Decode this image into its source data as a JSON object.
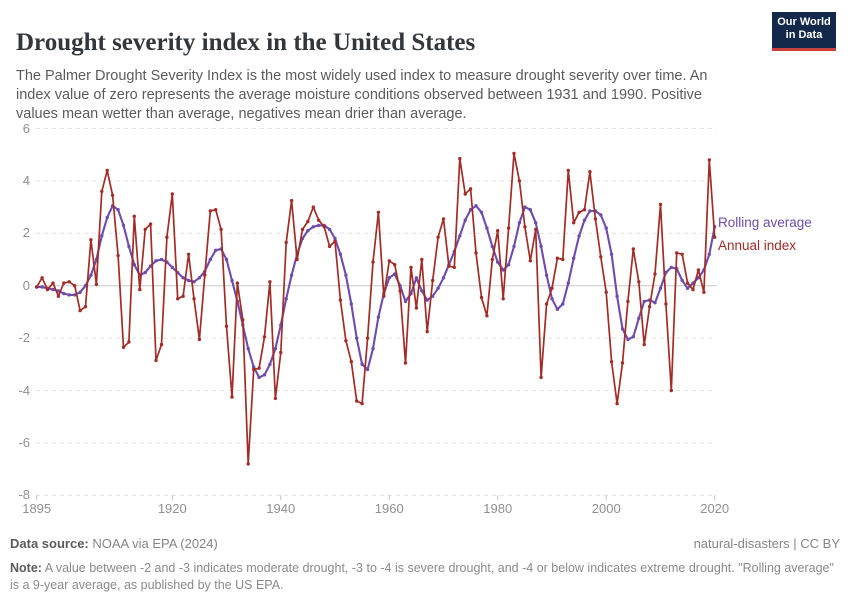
{
  "header": {
    "title": "Drought severity index in the United States",
    "subtitle": "The Palmer Drought Severity Index is the most widely used index to measure drought severity over time. An index value of zero represents the average moisture conditions observed between 1931 and 1990. Positive values mean wetter than average, negatives mean drier than average.",
    "logo": {
      "line1": "Our World",
      "line2": "in Data"
    }
  },
  "legend": {
    "rolling_label": "Rolling average",
    "annual_label": "Annual index"
  },
  "footer": {
    "source_label": "Data source:",
    "source_text": " NOAA via EPA (2024)",
    "attribution": "natural-disasters | CC BY",
    "note_label": "Note:",
    "note_text": " A value between -2 and -3 indicates moderate drought, -3 to -4 is severe drought, and -4 or below indicates extreme drought. \"Rolling average\" is a 9-year average, as published by the US EPA."
  },
  "colors": {
    "annual": "#A22C26",
    "rolling": "#6D4CAD",
    "grid": "#e0e0e0",
    "zero_line": "#c8c8c8",
    "tick_text": "#909090",
    "logo_navy": "#12294B",
    "logo_red": "#C7403C"
  },
  "chart_data": {
    "type": "line",
    "title": "Drought severity index in the United States",
    "xlabel": "",
    "ylabel": "",
    "xlim": [
      1895,
      2020
    ],
    "ylim": [
      -8,
      6
    ],
    "x_ticks": [
      1895,
      1920,
      1940,
      1960,
      1980,
      2000,
      2020
    ],
    "y_ticks": [
      6,
      4,
      2,
      0,
      -2,
      -4,
      -6,
      -8
    ],
    "grid": "horizontal dashed, solid line at zero",
    "legend_position": "right of line ends",
    "years": [
      1895,
      1896,
      1897,
      1898,
      1899,
      1900,
      1901,
      1902,
      1903,
      1904,
      1905,
      1906,
      1907,
      1908,
      1909,
      1910,
      1911,
      1912,
      1913,
      1914,
      1915,
      1916,
      1917,
      1918,
      1919,
      1920,
      1921,
      1922,
      1923,
      1924,
      1925,
      1926,
      1927,
      1928,
      1929,
      1930,
      1931,
      1932,
      1933,
      1934,
      1935,
      1936,
      1937,
      1938,
      1939,
      1940,
      1941,
      1942,
      1943,
      1944,
      1945,
      1946,
      1947,
      1948,
      1949,
      1950,
      1951,
      1952,
      1953,
      1954,
      1955,
      1956,
      1957,
      1958,
      1959,
      1960,
      1961,
      1962,
      1963,
      1964,
      1965,
      1966,
      1967,
      1968,
      1969,
      1970,
      1971,
      1972,
      1973,
      1974,
      1975,
      1976,
      1977,
      1978,
      1979,
      1980,
      1981,
      1982,
      1983,
      1984,
      1985,
      1986,
      1987,
      1988,
      1989,
      1990,
      1991,
      1992,
      1993,
      1994,
      1995,
      1996,
      1997,
      1998,
      1999,
      2000,
      2001,
      2002,
      2003,
      2004,
      2005,
      2006,
      2007,
      2008,
      2009,
      2010,
      2011,
      2012,
      2013,
      2014,
      2015,
      2016,
      2017,
      2018,
      2019,
      2020
    ],
    "series": [
      {
        "name": "Rolling average",
        "color": "#6D4CAD",
        "values": [
          -0.05,
          -0.05,
          -0.1,
          -0.15,
          -0.2,
          -0.3,
          -0.35,
          -0.35,
          -0.25,
          0,
          0.4,
          1,
          1.9,
          2.6,
          3.05,
          2.9,
          2.3,
          1.5,
          0.8,
          0.4,
          0.5,
          0.75,
          0.95,
          1,
          0.9,
          0.7,
          0.5,
          0.3,
          0.2,
          0.15,
          0.3,
          0.55,
          1,
          1.35,
          1.4,
          1,
          0.2,
          -0.6,
          -1.5,
          -2.4,
          -3.1,
          -3.5,
          -3.4,
          -3,
          -2.4,
          -1.5,
          -0.5,
          0.4,
          1.2,
          1.8,
          2.1,
          2.25,
          2.3,
          2.3,
          2.15,
          1.8,
          1.2,
          0.4,
          -0.7,
          -2,
          -3,
          -3.2,
          -2.4,
          -1.2,
          -0.3,
          0.3,
          0.45,
          0,
          -0.6,
          -0.3,
          0.3,
          -0.2,
          -0.55,
          -0.4,
          -0.1,
          0.3,
          0.8,
          1.3,
          1.9,
          2.5,
          2.9,
          3.05,
          2.8,
          2.2,
          1.5,
          0.9,
          0.6,
          0.8,
          1.5,
          2.4,
          3,
          2.9,
          2.4,
          1.5,
          0.4,
          -0.5,
          -0.9,
          -0.7,
          0.1,
          1.05,
          1.9,
          2.5,
          2.85,
          2.85,
          2.7,
          2.2,
          1.2,
          -0.4,
          -1.65,
          -2.05,
          -1.95,
          -1.25,
          -0.6,
          -0.55,
          -0.65,
          -0.1,
          0.5,
          0.7,
          0.65,
          0.2,
          -0.1,
          0.1,
          0.3,
          0.6,
          1.2,
          2.25
        ]
      },
      {
        "name": "Annual index",
        "color": "#A22C26",
        "values": [
          -0.05,
          0.3,
          -0.15,
          0.1,
          -0.4,
          0.1,
          0.15,
          0,
          -0.95,
          -0.8,
          1.75,
          0.05,
          3.6,
          4.4,
          3.45,
          1.15,
          -2.35,
          -2.15,
          2.65,
          -0.15,
          2.15,
          2.35,
          -2.85,
          -2.25,
          1.85,
          3.5,
          -0.5,
          -0.4,
          1.2,
          -0.5,
          -2.05,
          0.4,
          2.85,
          2.9,
          2.15,
          -1.55,
          -4.25,
          0.1,
          -1.3,
          -6.8,
          -3.2,
          -3.15,
          -1.95,
          0.15,
          -4.3,
          -2.55,
          1.65,
          3.25,
          1,
          2.15,
          2.45,
          3,
          2.5,
          2.25,
          1.5,
          1.7,
          -0.55,
          -2.1,
          -2.9,
          -4.4,
          -4.5,
          -2,
          0.9,
          2.8,
          -0.4,
          0.95,
          0.8,
          -0.2,
          -2.95,
          0.7,
          -0.85,
          1,
          -1.75,
          0.2,
          1.85,
          2.55,
          0.75,
          0.7,
          4.85,
          3.5,
          3.7,
          1.25,
          -0.45,
          -1.15,
          1,
          2.1,
          -0.5,
          2.2,
          5.05,
          4,
          2.25,
          0.95,
          2.15,
          -3.5,
          -0.7,
          -0.1,
          1.05,
          1,
          4.4,
          2.4,
          2.8,
          2.9,
          4.35,
          2.55,
          1.1,
          -0.25,
          -2.9,
          -4.5,
          -2.95,
          -0.6,
          1.4,
          0.15,
          -2.25,
          -0.8,
          0.45,
          3.1,
          -0.7,
          -4,
          1.25,
          1.2,
          0.1,
          -0.15,
          0.6,
          -0.25,
          4.8,
          1.85
        ]
      }
    ]
  }
}
